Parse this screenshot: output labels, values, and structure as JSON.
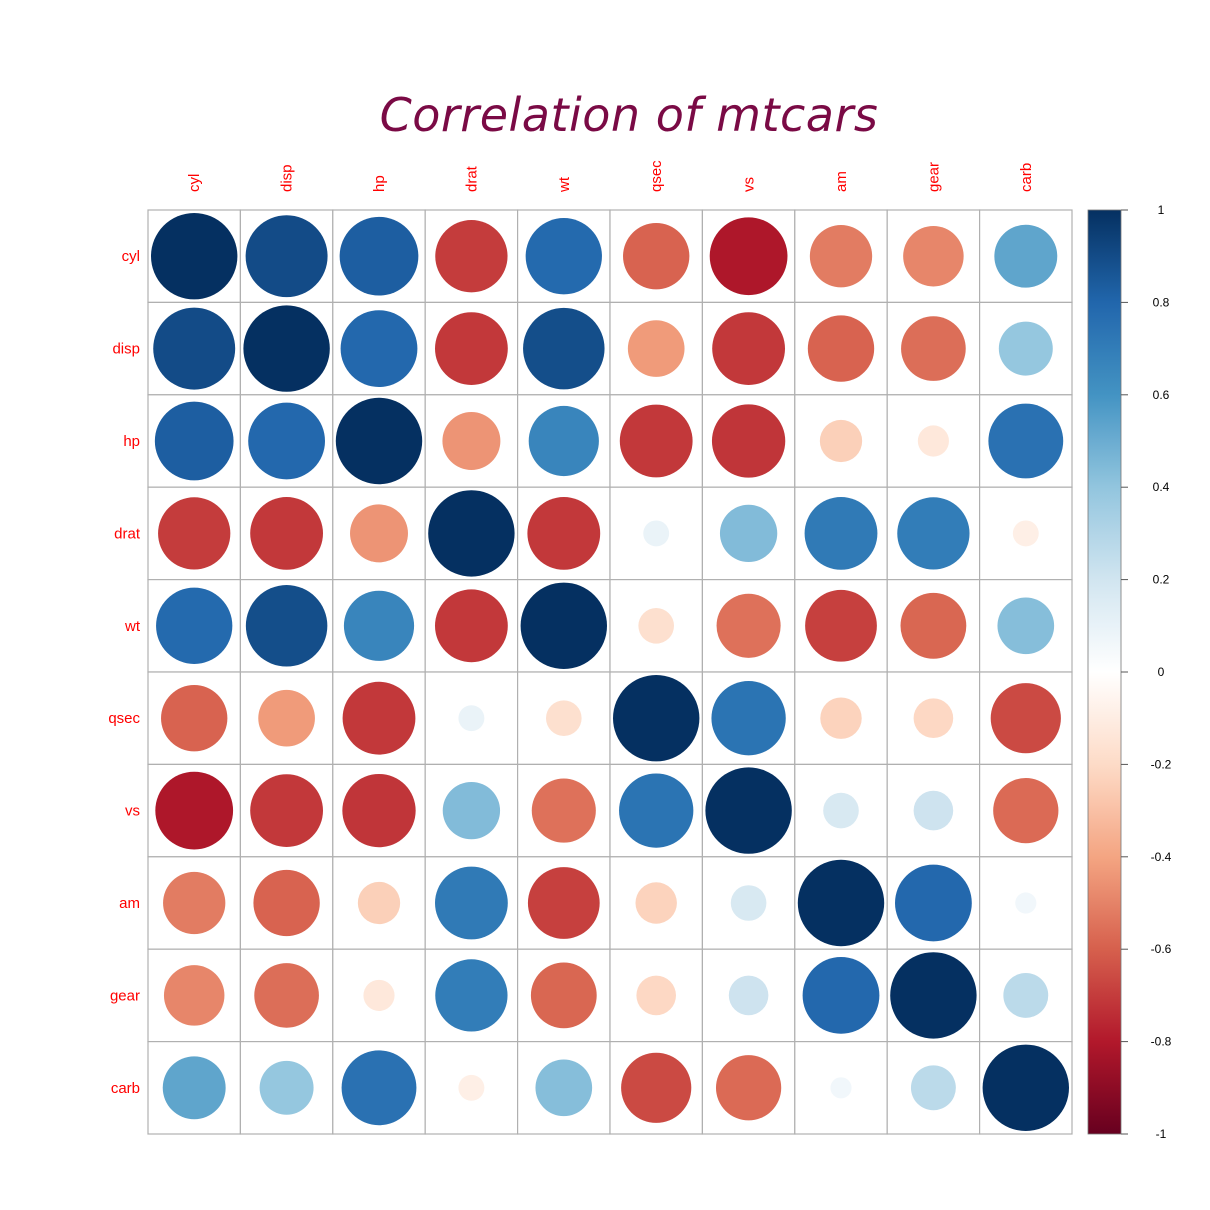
{
  "chart_data": {
    "type": "heatmap",
    "subtype": "correlation-circle",
    "title": "Correlation of mtcars",
    "variables": [
      "cyl",
      "disp",
      "hp",
      "drat",
      "wt",
      "qsec",
      "vs",
      "am",
      "gear",
      "carb"
    ],
    "x_labels": [
      "cyl",
      "disp",
      "hp",
      "drat",
      "wt",
      "qsec",
      "vs",
      "am",
      "gear",
      "carb"
    ],
    "y_labels": [
      "cyl",
      "disp",
      "hp",
      "drat",
      "wt",
      "qsec",
      "vs",
      "am",
      "gear",
      "carb"
    ],
    "matrix": [
      [
        1.0,
        0.9,
        0.83,
        -0.7,
        0.78,
        -0.59,
        -0.81,
        -0.52,
        -0.49,
        0.53
      ],
      [
        0.9,
        1.0,
        0.79,
        -0.71,
        0.89,
        -0.43,
        -0.71,
        -0.59,
        -0.56,
        0.39
      ],
      [
        0.83,
        0.79,
        1.0,
        -0.45,
        0.66,
        -0.71,
        -0.72,
        -0.24,
        -0.13,
        0.75
      ],
      [
        -0.7,
        -0.71,
        -0.45,
        1.0,
        -0.71,
        0.09,
        0.44,
        0.71,
        0.7,
        -0.09
      ],
      [
        0.78,
        0.89,
        0.66,
        -0.71,
        1.0,
        -0.17,
        -0.55,
        -0.69,
        -0.58,
        0.43
      ],
      [
        -0.59,
        -0.43,
        -0.71,
        0.09,
        -0.17,
        1.0,
        0.74,
        -0.23,
        -0.21,
        -0.66
      ],
      [
        -0.81,
        -0.71,
        -0.72,
        0.44,
        -0.55,
        0.74,
        1.0,
        0.17,
        0.21,
        -0.57
      ],
      [
        -0.52,
        -0.59,
        -0.24,
        0.71,
        -0.69,
        -0.23,
        0.17,
        1.0,
        0.79,
        0.06
      ],
      [
        -0.49,
        -0.56,
        -0.13,
        0.7,
        -0.58,
        -0.21,
        0.21,
        0.79,
        1.0,
        0.27
      ],
      [
        0.53,
        0.39,
        0.75,
        -0.09,
        0.43,
        -0.66,
        -0.57,
        0.06,
        0.27,
        1.0
      ]
    ],
    "legend": {
      "type": "colorbar",
      "position": "right",
      "range": [
        -1,
        1
      ],
      "ticks": [
        "1",
        "0.8",
        "0.6",
        "0.4",
        "0.2",
        "0",
        "-0.2",
        "-0.4",
        "-0.6",
        "-0.8",
        "-1"
      ],
      "palette": "RdBu"
    },
    "grid": true
  },
  "colors": {
    "title": "#7a0a45",
    "labels": "#ff0000",
    "gridline": "#b0b0b0",
    "palette_stops": [
      "#67001f",
      "#b2182b",
      "#d6604d",
      "#f4a582",
      "#fddbc7",
      "#ffffff",
      "#d1e5f0",
      "#92c5de",
      "#4393c3",
      "#2166ac",
      "#053061"
    ]
  }
}
